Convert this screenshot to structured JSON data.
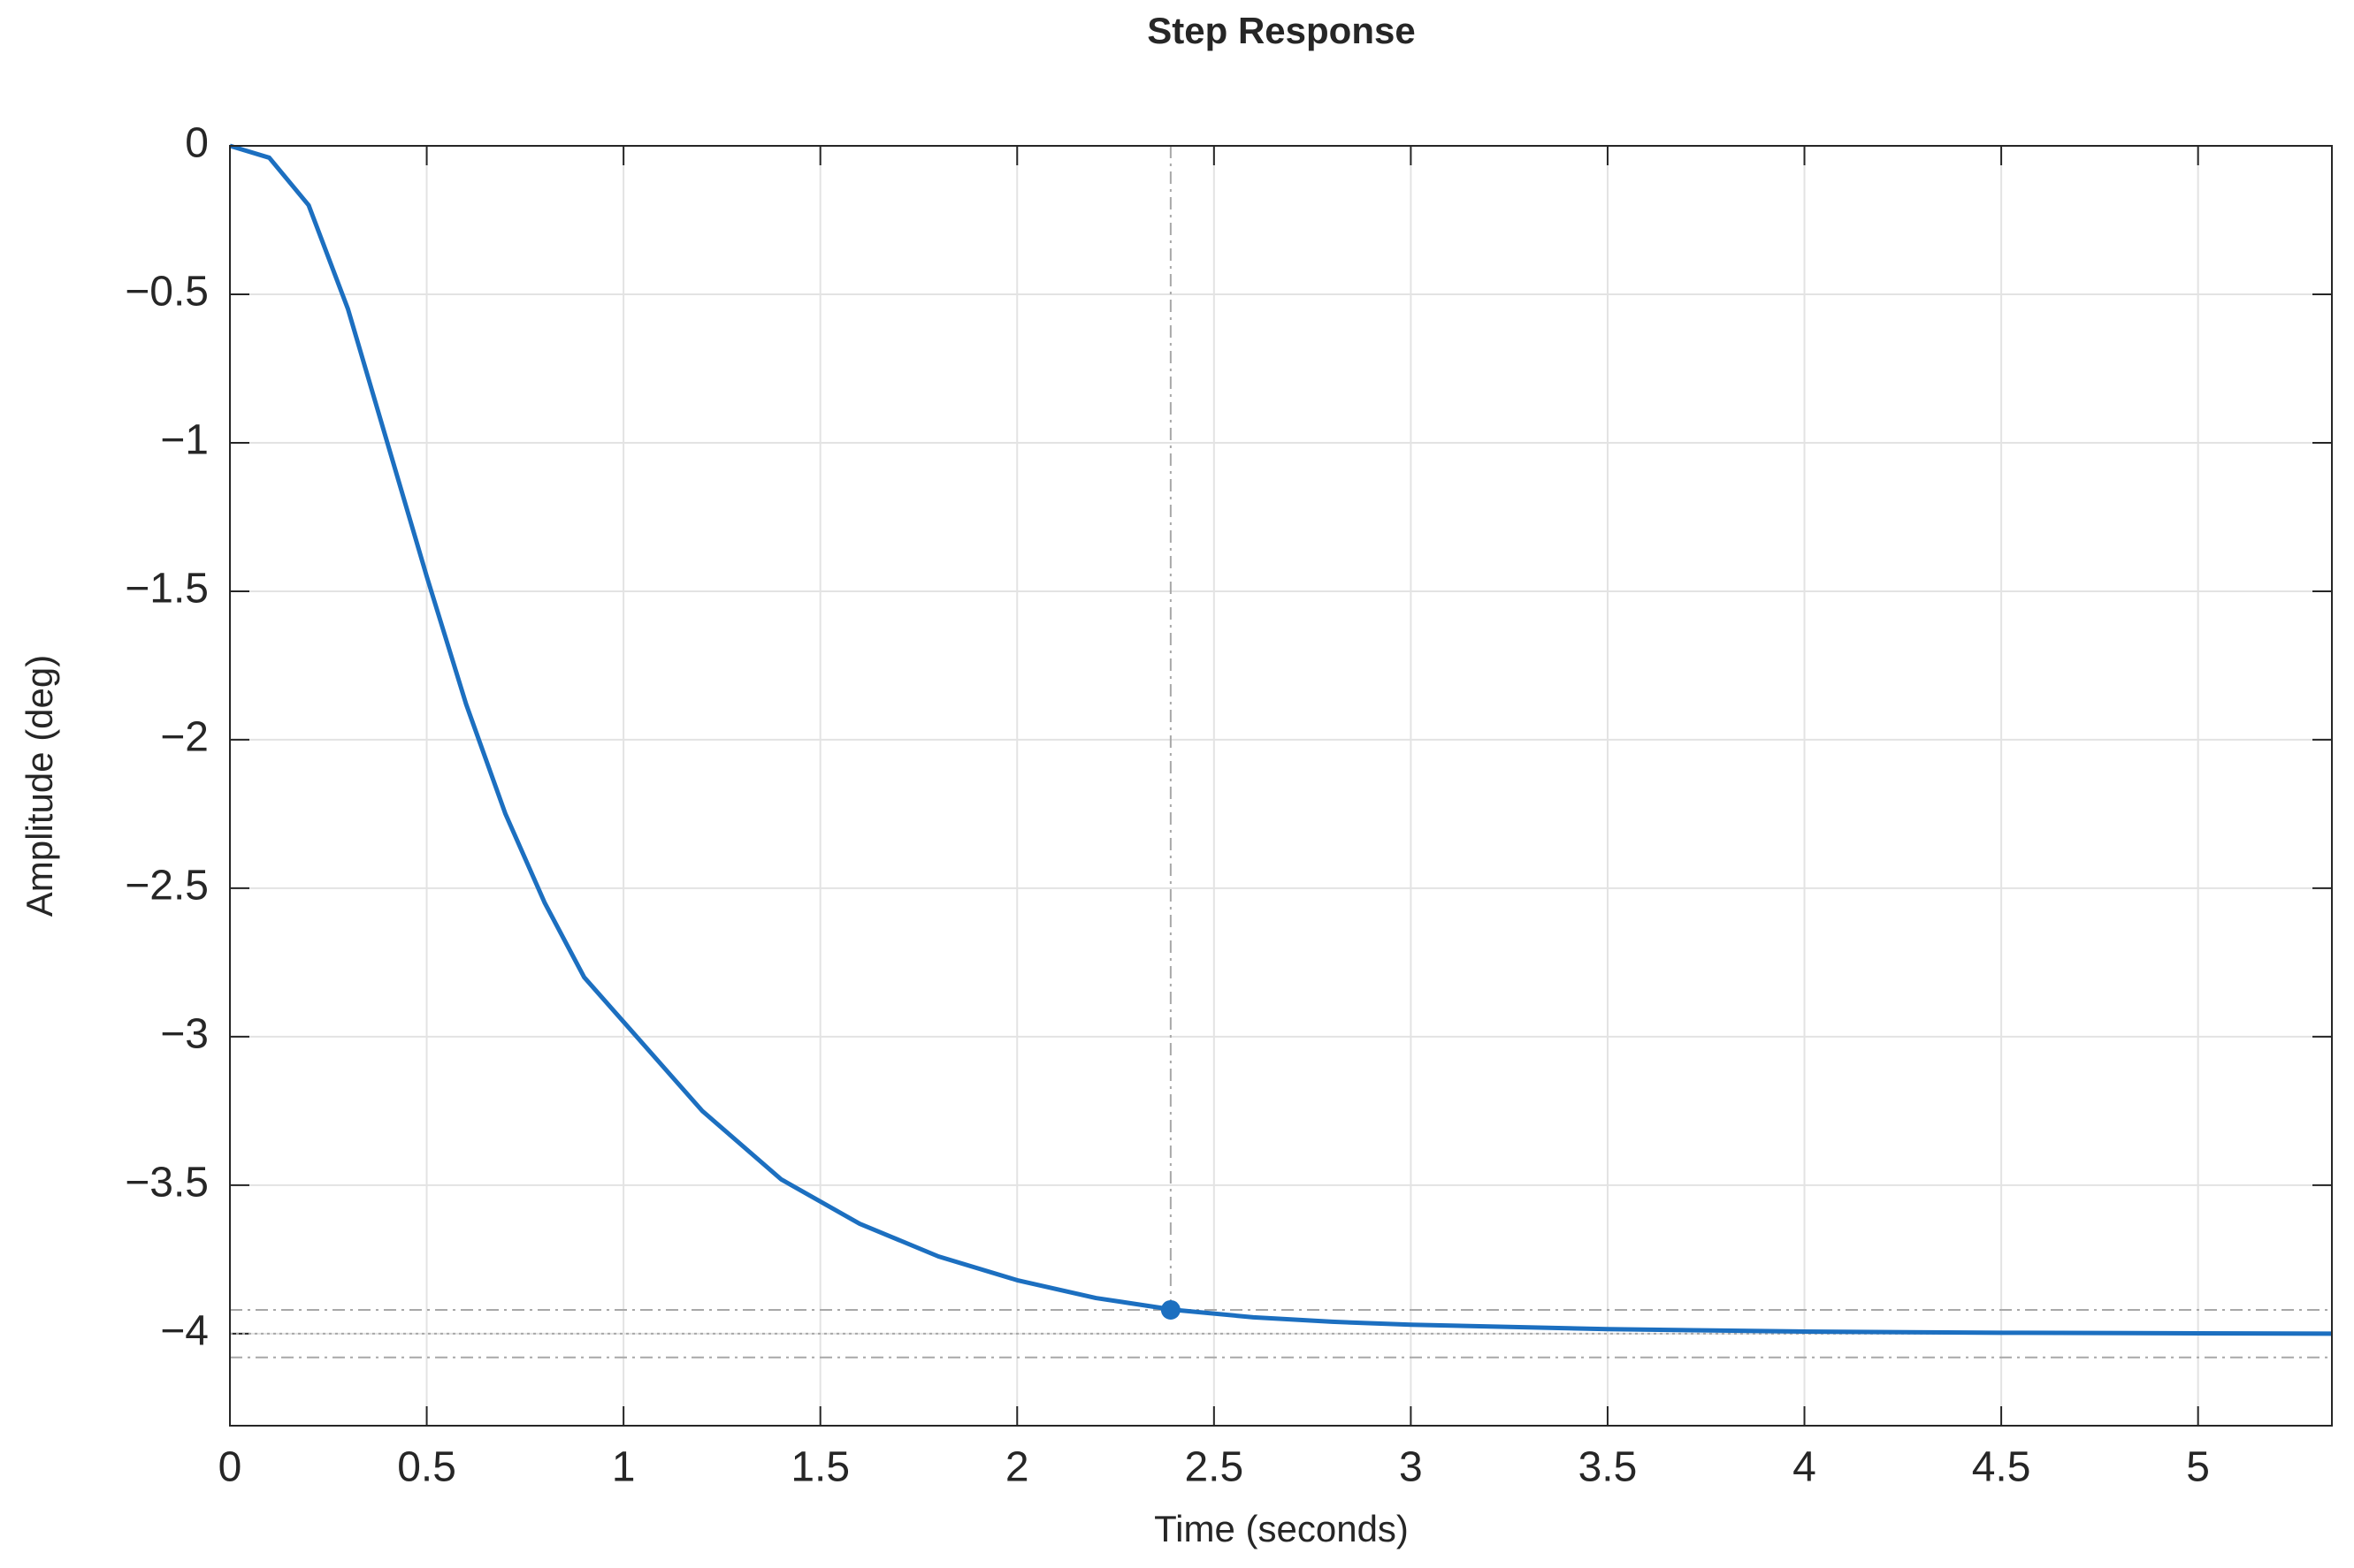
{
  "chart_data": {
    "type": "line",
    "title": "Step Response",
    "xlabel": "Time (seconds)",
    "ylabel": "Amplitude (deg)",
    "x": [
      0,
      0.1,
      0.2,
      0.3,
      0.4,
      0.5,
      0.6,
      0.7,
      0.8,
      0.9,
      1.0,
      1.2,
      1.4,
      1.6,
      1.8,
      2.0,
      2.2,
      2.4,
      2.6,
      2.8,
      3.0,
      3.5,
      4.0,
      4.5,
      5.0,
      5.34
    ],
    "series": [
      {
        "color": "#1c6fc0",
        "values": [
          0,
          -0.04,
          -0.2,
          -0.55,
          -1.0,
          -1.45,
          -1.88,
          -2.25,
          -2.55,
          -2.8,
          -2.95,
          -3.25,
          -3.48,
          -3.63,
          -3.74,
          -3.82,
          -3.88,
          -3.92,
          -3.945,
          -3.96,
          -3.97,
          -3.985,
          -3.993,
          -3.997,
          -3.999,
          -4.0
        ]
      }
    ],
    "settling_point": {
      "x": 2.39,
      "y": -3.92
    },
    "final_value": -4,
    "settling_band": [
      -3.92,
      -4.08
    ],
    "xlim": [
      0,
      5.34
    ],
    "ylim": [
      -4.31,
      0
    ],
    "xticks": [
      0,
      0.5,
      1,
      1.5,
      2,
      2.5,
      3,
      3.5,
      4,
      4.5,
      5
    ],
    "yticks": [
      0,
      {
        "value": -0.5,
        "label": "−0.5"
      },
      {
        "value": -1,
        "label": "−1"
      },
      {
        "value": -1.5,
        "label": "−1.5"
      },
      {
        "value": -2,
        "label": "−2"
      },
      {
        "value": -2.5,
        "label": "−2.5"
      },
      {
        "value": -3,
        "label": "−3"
      },
      {
        "value": -3.5,
        "label": "−3.5"
      },
      {
        "value": -4,
        "label": "−4"
      }
    ],
    "grid": true
  }
}
